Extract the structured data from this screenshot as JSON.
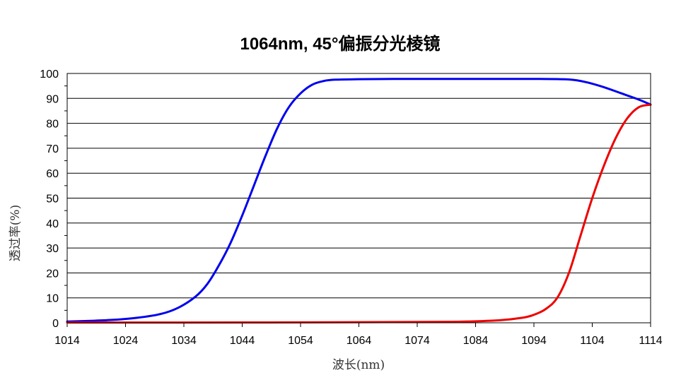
{
  "chart_data": {
    "type": "line",
    "title": "1064nm, 45°偏振分光棱镜",
    "xlabel": "波长(nm)",
    "ylabel": "透过率(%)",
    "xlim": [
      1014,
      1114
    ],
    "ylim": [
      0,
      100
    ],
    "x_ticks": [
      1014,
      1024,
      1034,
      1044,
      1054,
      1064,
      1074,
      1084,
      1094,
      1104,
      1114
    ],
    "y_ticks": [
      0,
      10,
      20,
      30,
      40,
      50,
      60,
      70,
      80,
      90,
      100
    ],
    "grid": true,
    "legend": "none",
    "series": [
      {
        "color": "#0000ee",
        "x": [
          1014,
          1018,
          1022,
          1026,
          1030,
          1033,
          1036,
          1038,
          1040,
          1042,
          1044,
          1046,
          1048,
          1050,
          1052,
          1054,
          1056,
          1058,
          1060,
          1064,
          1070,
          1080,
          1090,
          1095,
          1100,
          1103,
          1106,
          1109,
          1112,
          1114
        ],
        "values": [
          0.5,
          0.8,
          1.2,
          2.0,
          3.5,
          6.0,
          10.5,
          15.5,
          23.0,
          32.0,
          43.0,
          55.0,
          67.0,
          78.0,
          86.5,
          92.0,
          95.5,
          97.0,
          97.5,
          97.7,
          97.8,
          97.8,
          97.8,
          97.8,
          97.6,
          96.5,
          94.5,
          92.0,
          89.5,
          87.5
        ]
      },
      {
        "color": "#ee0000",
        "x": [
          1014,
          1030,
          1060,
          1080,
          1088,
          1092,
          1094,
          1096,
          1098,
          1100,
          1102,
          1104,
          1106,
          1108,
          1110,
          1112,
          1114
        ],
        "values": [
          0.1,
          0.1,
          0.2,
          0.4,
          1.0,
          2.0,
          3.2,
          5.5,
          10.0,
          20.0,
          35.0,
          50.0,
          63.0,
          74.0,
          82.0,
          86.5,
          87.5
        ]
      }
    ]
  }
}
